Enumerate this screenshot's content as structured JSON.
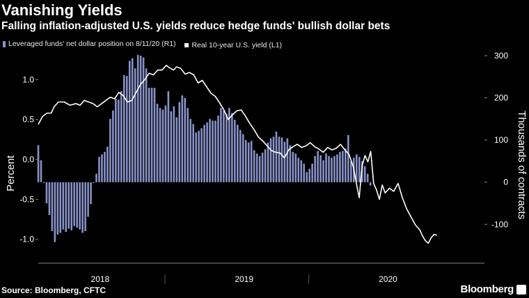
{
  "header": {
    "title": "Vanishing Yields",
    "subtitle": "Falling inflation-adjusted U.S. yields reduce hedge funds' bullish dollar bets"
  },
  "legend": {
    "bar_label": "Leveraged funds' net dollar position on 8/11/20 (R1)",
    "line_label": "Real 10-year U.S. yield (L1)"
  },
  "footer": {
    "source": "Source: Bloomberg, CFTC",
    "brand": "Bloomberg"
  },
  "colors": {
    "bars": "#8892c9",
    "line": "#ffffff",
    "background": "#000000",
    "axis": "#888888"
  },
  "chart_data": {
    "type": "bar+line",
    "x_range": [
      2017.62,
      2020.72
    ],
    "x_tick_labels": [
      "2018",
      "2019",
      "2020"
    ],
    "x_tick_positions": [
      2018.0,
      2019.0,
      2020.0
    ],
    "left_axis": {
      "label": "Percent",
      "range": [
        -1.3,
        1.3
      ],
      "ticks": [
        1.0,
        0.5,
        0.0,
        -0.5,
        -1.0
      ],
      "tick_labels": [
        "1.0",
        "0.5",
        "0.0",
        "-0.5",
        "-1.0"
      ]
    },
    "right_axis": {
      "label": "Thousands of contracts",
      "range": [
        -192,
        300
      ],
      "ticks": [
        300,
        200,
        100,
        0,
        -100
      ],
      "tick_labels": [
        "300",
        "200",
        "100",
        "0",
        "-100"
      ]
    },
    "series": [
      {
        "name": "Leveraged funds' net dollar position on 8/11/20 (R1)",
        "kind": "bar",
        "axis": "right",
        "start": 2017.62,
        "step": 0.01923,
        "values": [
          88,
          52,
          -2,
          -50,
          -78,
          -116,
          -142,
          -124,
          -120,
          -112,
          -118,
          -110,
          -114,
          -104,
          -108,
          -112,
          -120,
          -116,
          -82,
          -52,
          -2,
          20,
          60,
          66,
          72,
          84,
          150,
          170,
          198,
          196,
          216,
          254,
          252,
          288,
          294,
          270,
          302,
          300,
          296,
          270,
          224,
          224,
          224,
          186,
          176,
          172,
          182,
          216,
          168,
          180,
          154,
          190,
          206,
          200,
          176,
          150,
          138,
          118,
          122,
          128,
          136,
          142,
          150,
          146,
          146,
          158,
          176,
          170,
          162,
          176,
          164,
          148,
          136,
          124,
          114,
          100,
          94,
          98,
          76,
          68,
          62,
          70,
          78,
          94,
          104,
          108,
          120,
          108,
          106,
          96,
          104,
          88,
          72,
          68,
          58,
          52,
          44,
          24,
          32,
          44,
          62,
          74,
          64,
          52,
          68,
          62,
          58,
          62,
          66,
          72,
          74,
          80,
          112,
          50,
          58,
          66,
          60,
          50,
          38,
          20,
          -8
        ]
      },
      {
        "name": "Real 10-year U.S. yield (L1)",
        "kind": "line",
        "axis": "left",
        "points": [
          [
            2017.62,
            0.44
          ],
          [
            2017.65,
            0.54
          ],
          [
            2017.68,
            0.58
          ],
          [
            2017.71,
            0.58
          ],
          [
            2017.73,
            0.66
          ],
          [
            2017.76,
            0.72
          ],
          [
            2017.8,
            0.72
          ],
          [
            2017.84,
            0.68
          ],
          [
            2017.88,
            0.7
          ],
          [
            2017.91,
            0.68
          ],
          [
            2017.94,
            0.74
          ],
          [
            2017.97,
            0.72
          ],
          [
            2018.0,
            0.7
          ],
          [
            2018.03,
            0.66
          ],
          [
            2018.06,
            0.7
          ],
          [
            2018.09,
            0.74
          ],
          [
            2018.12,
            0.78
          ],
          [
            2018.15,
            0.76
          ],
          [
            2018.18,
            0.84
          ],
          [
            2018.21,
            0.8
          ],
          [
            2018.24,
            0.72
          ],
          [
            2018.27,
            0.74
          ],
          [
            2018.3,
            0.84
          ],
          [
            2018.33,
            0.94
          ],
          [
            2018.36,
            1.0
          ],
          [
            2018.39,
            1.08
          ],
          [
            2018.42,
            1.06
          ],
          [
            2018.45,
            1.12
          ],
          [
            2018.48,
            1.12
          ],
          [
            2018.51,
            1.18
          ],
          [
            2018.53,
            1.15
          ],
          [
            2018.56,
            1.12
          ],
          [
            2018.58,
            1.16
          ],
          [
            2018.61,
            1.14
          ],
          [
            2018.64,
            1.07
          ],
          [
            2018.67,
            1.09
          ],
          [
            2018.7,
            1.06
          ],
          [
            2018.73,
            0.96
          ],
          [
            2018.76,
            0.99
          ],
          [
            2018.79,
            0.91
          ],
          [
            2018.82,
            0.83
          ],
          [
            2018.85,
            0.79
          ],
          [
            2018.88,
            0.71
          ],
          [
            2018.91,
            0.62
          ],
          [
            2018.94,
            0.5
          ],
          [
            2018.97,
            0.56
          ],
          [
            2019.0,
            0.61
          ],
          [
            2019.03,
            0.62
          ],
          [
            2019.06,
            0.54
          ],
          [
            2019.09,
            0.45
          ],
          [
            2019.12,
            0.37
          ],
          [
            2019.15,
            0.28
          ],
          [
            2019.18,
            0.23
          ],
          [
            2019.21,
            0.17
          ],
          [
            2019.24,
            0.11
          ],
          [
            2019.27,
            0.09
          ],
          [
            2019.3,
            0.08
          ],
          [
            2019.33,
            0.02
          ],
          [
            2019.36,
            0.12
          ],
          [
            2019.39,
            0.16
          ],
          [
            2019.42,
            0.19
          ],
          [
            2019.45,
            0.15
          ],
          [
            2019.48,
            0.17
          ],
          [
            2019.51,
            0.21
          ],
          [
            2019.54,
            0.16
          ],
          [
            2019.57,
            0.13
          ],
          [
            2019.6,
            0.09
          ],
          [
            2019.63,
            0.15
          ],
          [
            2019.66,
            0.12
          ],
          [
            2019.69,
            0.14
          ],
          [
            2019.72,
            0.19
          ],
          [
            2019.75,
            0.12
          ],
          [
            2019.78,
            0.06
          ],
          [
            2019.81,
            -0.1
          ],
          [
            2019.83,
            -0.3
          ],
          [
            2019.85,
            -0.48
          ],
          [
            2019.87,
            -0.08
          ],
          [
            2019.89,
            0.05
          ],
          [
            2019.91,
            -0.03
          ],
          [
            2019.93,
            0.1
          ],
          [
            2019.95,
            -0.3
          ],
          [
            2019.97,
            -0.38
          ],
          [
            2019.99,
            -0.5
          ],
          [
            2020.01,
            -0.32
          ],
          [
            2020.03,
            -0.42
          ],
          [
            2020.06,
            -0.36
          ],
          [
            2020.09,
            -0.4
          ],
          [
            2020.12,
            -0.3
          ],
          [
            2020.15,
            -0.48
          ],
          [
            2020.18,
            -0.62
          ],
          [
            2020.21,
            -0.72
          ],
          [
            2020.24,
            -0.82
          ],
          [
            2020.27,
            -0.88
          ],
          [
            2020.29,
            -0.96
          ],
          [
            2020.31,
            -1.02
          ],
          [
            2020.33,
            -1.05
          ],
          [
            2020.35,
            -0.98
          ],
          [
            2020.37,
            -0.94
          ],
          [
            2020.39,
            -0.95
          ]
        ]
      }
    ],
    "grid": false,
    "legend_position": "top-left"
  }
}
